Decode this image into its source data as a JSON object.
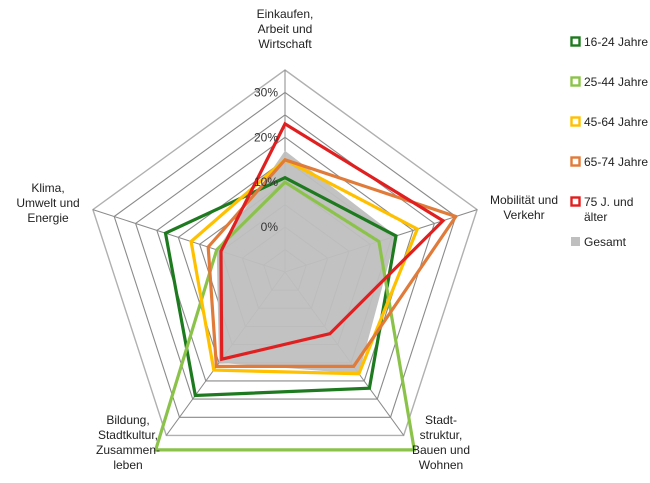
{
  "chart_data": {
    "type": "radar",
    "axes": [
      [
        "Einkaufen,",
        "Arbeit und",
        "Wirtschaft"
      ],
      [
        "Mobilität und",
        "Verkehr"
      ],
      [
        "Stadt-",
        "struktur,",
        "Bauen und",
        "Wohnen"
      ],
      [
        "Bildung,",
        "Stadtkultur,",
        "Zusammen-",
        "leben"
      ],
      [
        "Klima,",
        "Umwelt und",
        "Energie"
      ]
    ],
    "ticks": [
      "0%",
      "10%",
      "20%",
      "30%"
    ],
    "rmin": -10,
    "rmax": 35,
    "grid_levels": [
      -10,
      -5,
      0,
      5,
      10,
      15,
      20,
      25,
      30,
      35
    ],
    "legend_position": "right",
    "series": [
      {
        "name": "Gesamt",
        "color": "#bfbfbf",
        "fill": true,
        "values": [
          17,
          16,
          18,
          15,
          6
        ]
      },
      {
        "name": "16-24 Jahre",
        "color": "#1e7a1e",
        "values": [
          11,
          16,
          22,
          24,
          18
        ]
      },
      {
        "name": "25-44 Jahre",
        "color": "#8bc34a",
        "values": [
          10,
          12,
          39,
          39,
          6
        ]
      },
      {
        "name": "45-64 Jahre",
        "color": "#ffc000",
        "values": [
          15,
          21,
          18,
          17,
          12
        ]
      },
      {
        "name": "65-74 Jahre",
        "color": "#e07b39",
        "values": [
          15,
          30,
          16,
          16,
          8
        ]
      },
      {
        "name": "75 J. und älter",
        "color": "#e02020",
        "values": [
          23,
          27,
          7,
          14,
          5
        ]
      }
    ],
    "legend": [
      {
        "label": [
          "16-24 Jahre"
        ],
        "color": "#1e7a1e",
        "style": "box"
      },
      {
        "label": [
          "25-44 Jahre"
        ],
        "color": "#8bc34a",
        "style": "box"
      },
      {
        "label": [
          "45-64 Jahre"
        ],
        "color": "#ffc000",
        "style": "box"
      },
      {
        "label": [
          "65-74 Jahre"
        ],
        "color": "#e07b39",
        "style": "box"
      },
      {
        "label": [
          "75 J. und",
          "älter"
        ],
        "color": "#e02020",
        "style": "box"
      },
      {
        "label": [
          "Gesamt"
        ],
        "color": "#bfbfbf",
        "style": "fill"
      }
    ]
  }
}
